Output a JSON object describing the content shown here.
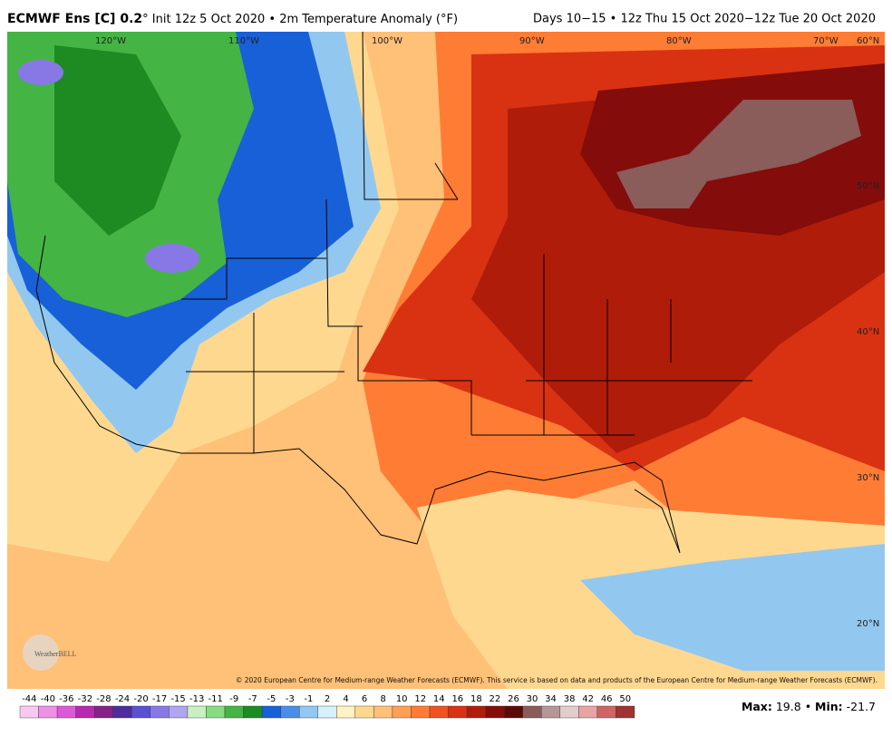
{
  "header": {
    "title_bold": "ECMWF Ens [C] 0.2",
    "title_rest": "° Init 12z 5 Oct 2020 • 2m Temperature Anomaly (°F)",
    "right": "Days 10−15 • 12z Thu 15 Oct 2020−12z Tue 20 Oct 2020"
  },
  "map": {
    "longitudes": [
      "120°W",
      "110°W",
      "100°W",
      "90°W",
      "80°W",
      "70°W",
      "60°N"
    ],
    "latitudes": [
      "50°N",
      "40°N",
      "30°N",
      "20°N"
    ],
    "copyright": "© 2020 European Centre for Medium-range Weather Forecasts (ECMWF). This service is based on data and products of the European Centre for Medium-range Weather Forecasts (ECMWF).",
    "logo": "WeatherBELL"
  },
  "colorbar": {
    "ticks": [
      -44,
      -40,
      -36,
      -32,
      -28,
      -24,
      -20,
      -17,
      -15,
      -13,
      -11,
      -9,
      -7,
      -5,
      -3,
      -1,
      2,
      4,
      6,
      8,
      10,
      12,
      14,
      16,
      18,
      22,
      26,
      30,
      34,
      38,
      42,
      46,
      50
    ],
    "colors": [
      "#f7c8f0",
      "#ee90e6",
      "#dc5ad8",
      "#b828b0",
      "#842288",
      "#4e2c9c",
      "#5b4fd4",
      "#8878e6",
      "#b0a6f0",
      "#c8f0c0",
      "#86dc80",
      "#44b444",
      "#1e8a22",
      "#1860d8",
      "#4a8ee8",
      "#92c8f0",
      "#d8f0fa",
      "#fff2c4",
      "#ffd890",
      "#ffc078",
      "#ffa054",
      "#ff7c34",
      "#f05222",
      "#d83212",
      "#b01c0a",
      "#840c0a",
      "#5c0a08",
      "#8a5c5a",
      "#b49696",
      "#e2cccc",
      "#e8a4a4",
      "#d06464",
      "#a03232"
    ]
  },
  "stats": {
    "max_label": "Max:",
    "max": 19.8,
    "separator": "•",
    "min_label": "Min:",
    "min": -21.7
  }
}
